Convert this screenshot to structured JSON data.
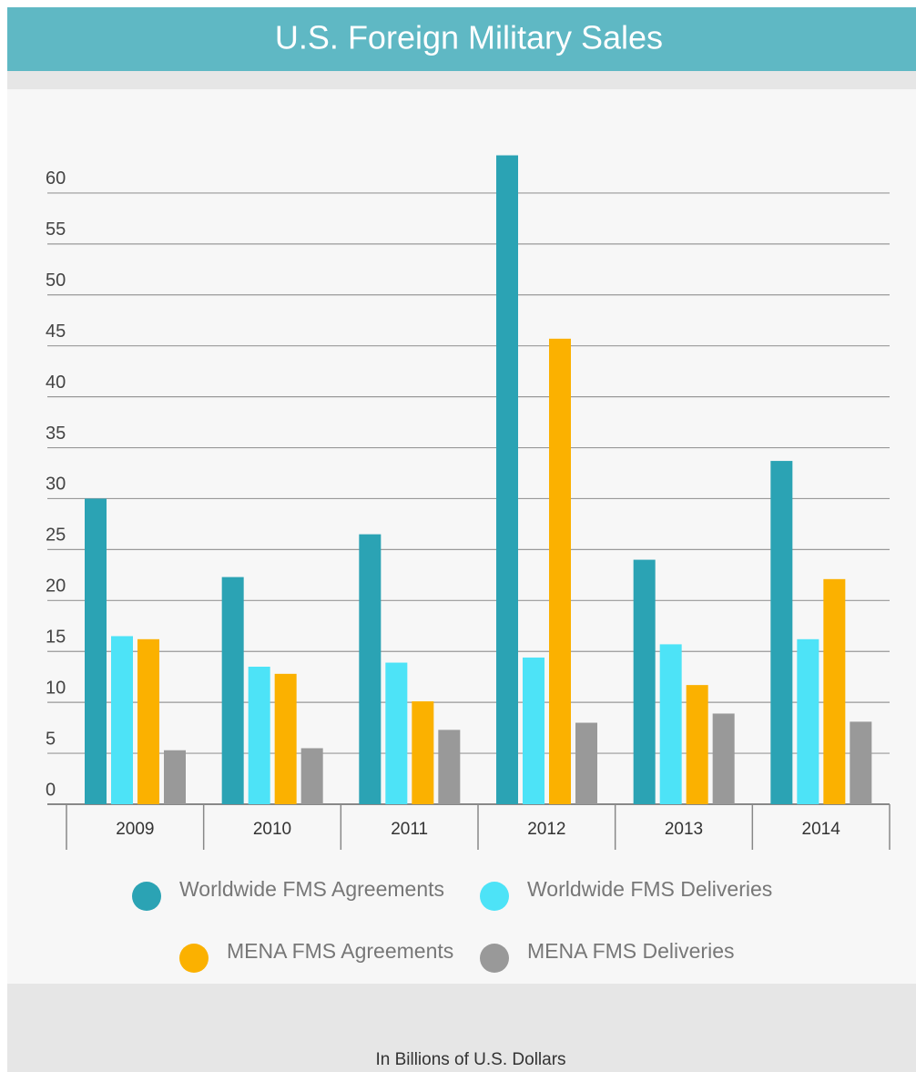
{
  "chart_data": {
    "type": "bar",
    "title": "U.S. Foreign Military Sales",
    "caption": "In Billions of U.S. Dollars",
    "categories": [
      "2009",
      "2010",
      "2011",
      "2012",
      "2013",
      "2014"
    ],
    "series": [
      {
        "name": "Worldwide FMS Agreements",
        "color": "#2ba3b4",
        "values": [
          30.0,
          22.3,
          26.5,
          63.7,
          24.0,
          33.7
        ]
      },
      {
        "name": "Worldwide FMS Deliveries",
        "color": "#4de3f7",
        "values": [
          16.5,
          13.5,
          13.9,
          14.4,
          15.7,
          16.2
        ]
      },
      {
        "name": "MENA FMS Agreements",
        "color": "#fbb100",
        "values": [
          16.2,
          12.8,
          10.1,
          45.7,
          11.7,
          22.1
        ]
      },
      {
        "name": "MENA FMS Deliveries",
        "color": "#999999",
        "values": [
          5.3,
          5.5,
          7.3,
          8.0,
          8.9,
          8.1
        ]
      }
    ],
    "ylim": [
      0,
      65
    ],
    "yticks": [
      0,
      5,
      10,
      15,
      20,
      25,
      30,
      35,
      40,
      45,
      50,
      55,
      60
    ],
    "grid": true
  }
}
